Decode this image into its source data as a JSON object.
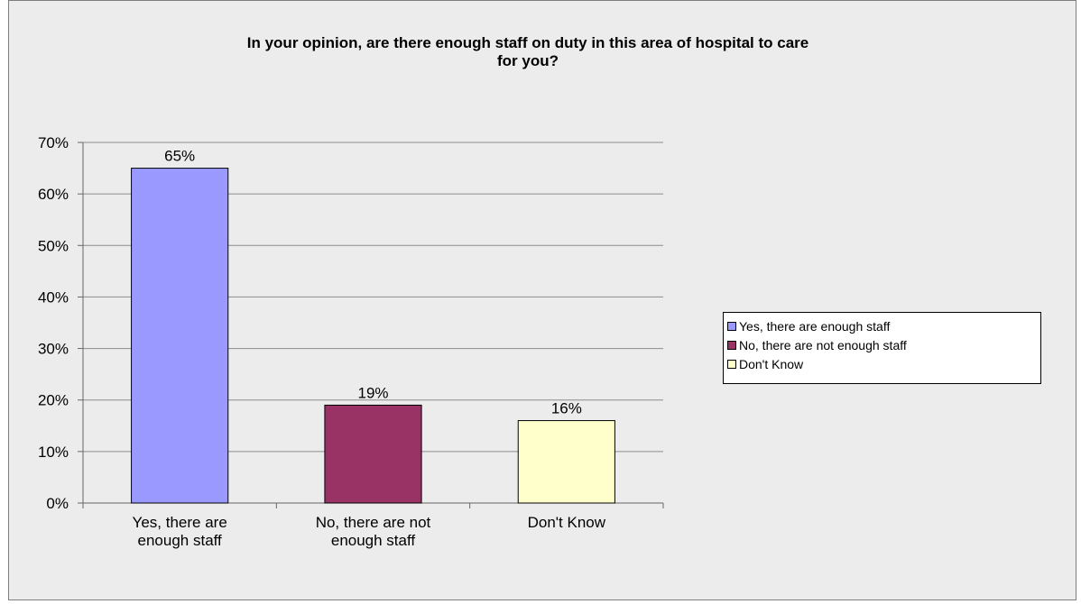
{
  "chart_data": {
    "type": "bar",
    "title": "In your opinion, are there enough staff on duty in this area of  hospital to care for you?",
    "title_lines": [
      "In your opinion, are there enough staff on duty in this area of  hospital to care",
      "for you?"
    ],
    "categories": [
      "Yes, there are enough staff",
      "No, there are not enough staff",
      "Don't Know"
    ],
    "category_label_lines": [
      [
        "Yes, there are",
        "enough staff"
      ],
      [
        "No, there are not",
        "enough staff"
      ],
      [
        "Don't Know"
      ]
    ],
    "values": [
      65,
      19,
      16
    ],
    "data_labels": [
      "65%",
      "19%",
      "16%"
    ],
    "colors": [
      "#9999ff",
      "#993366",
      "#ffffcc"
    ],
    "ylim": [
      0,
      70
    ],
    "yticks": [
      0,
      10,
      20,
      30,
      40,
      50,
      60,
      70
    ],
    "ytick_labels": [
      "0%",
      "10%",
      "20%",
      "30%",
      "40%",
      "50%",
      "60%",
      "70%"
    ],
    "grid": true,
    "legend_position": "right",
    "legend": [
      "Yes, there are enough staff",
      "No, there are not enough staff",
      "Don't Know"
    ]
  }
}
